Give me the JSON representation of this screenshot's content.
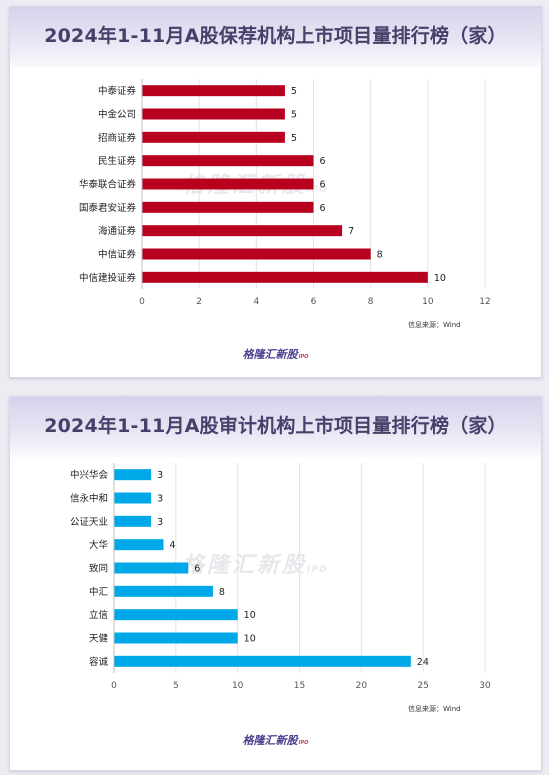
{
  "charts": [
    {
      "title": "2024年1-11月A股保荐机构上市项目量排行榜（家）",
      "source": "信息来源：Wind",
      "logo": "格隆汇新股",
      "logo_sub": "IPO",
      "watermark": "格隆汇新股",
      "watermark_sub": "IPO",
      "bar_color": "#b8001f"
    },
    {
      "title": "2024年1-11月A股审计机构上市项目量排行榜（家）",
      "source": "信息来源：Wind",
      "logo": "格隆汇新股",
      "logo_sub": "IPO",
      "watermark": "格隆汇新股",
      "watermark_sub": "IPO",
      "bar_color": "#00a8e8"
    }
  ],
  "chart_data": [
    {
      "type": "bar",
      "orientation": "horizontal",
      "title": "2024年1-11月A股保荐机构上市项目量排行榜（家）",
      "categories": [
        "中泰证券",
        "中金公司",
        "招商证券",
        "民生证券",
        "华泰联合证券",
        "国泰君安证券",
        "海通证券",
        "中信证券",
        "中信建投证券"
      ],
      "values": [
        5,
        5,
        5,
        6,
        6,
        6,
        7,
        8,
        10
      ],
      "xlim": [
        0,
        12
      ],
      "xticks": [
        0,
        2,
        4,
        6,
        8,
        10,
        12
      ],
      "grid": true,
      "data_labels": true
    },
    {
      "type": "bar",
      "orientation": "horizontal",
      "title": "2024年1-11月A股审计机构上市项目量排行榜（家）",
      "categories": [
        "中兴华会",
        "信永中和",
        "公证天业",
        "大华",
        "致同",
        "中汇",
        "立信",
        "天健",
        "容诚"
      ],
      "values": [
        3,
        3,
        3,
        4,
        6,
        8,
        10,
        10,
        24
      ],
      "xlim": [
        0,
        30
      ],
      "xticks": [
        0,
        5,
        10,
        15,
        20,
        25,
        30
      ],
      "grid": true,
      "data_labels": true
    }
  ]
}
